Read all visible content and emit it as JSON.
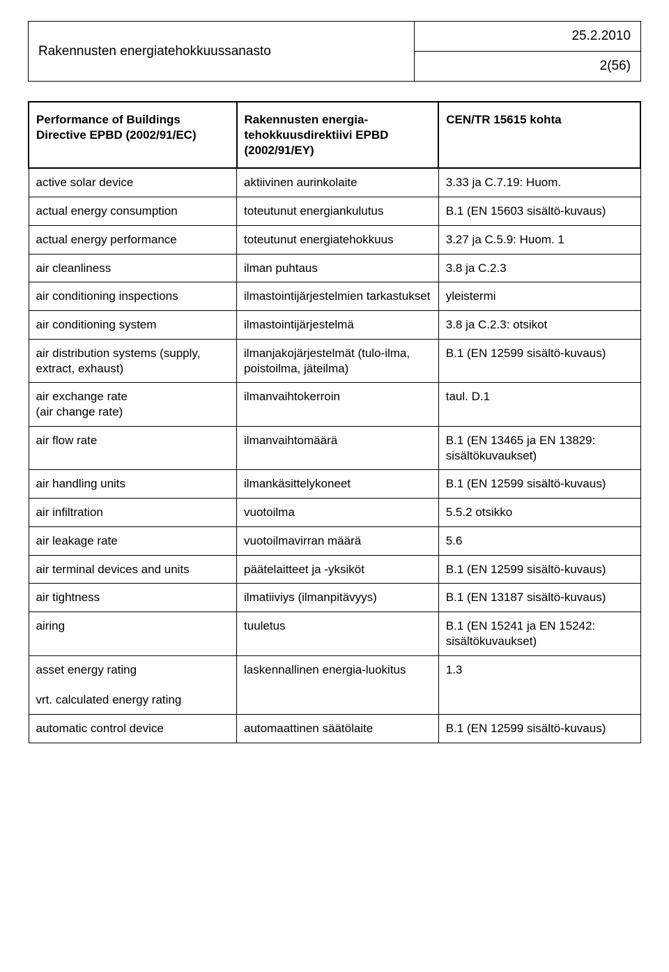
{
  "header": {
    "title": "Rakennusten energiatehokkuussanasto",
    "date": "25.2.2010",
    "page": "2(56)"
  },
  "columns": {
    "c1": "Performance of Buildings Directive EPBD (2002/91/EC)",
    "c2": "Rakennusten energia-tehokkuusdirektiivi EPBD (2002/91/EY)",
    "c3": "CEN/TR 15615 kohta"
  },
  "rows": [
    {
      "c1": "active solar device",
      "c2": "aktiivinen aurinkolaite",
      "c3": "3.33 ja C.7.19: Huom."
    },
    {
      "c1": "actual energy consumption",
      "c2": "toteutunut energiankulutus",
      "c3": "B.1 (EN 15603 sisältö-kuvaus)"
    },
    {
      "c1": "actual energy performance",
      "c2": "toteutunut energiatehokkuus",
      "c3": "3.27 ja C.5.9: Huom. 1"
    },
    {
      "c1": "air cleanliness",
      "c2": "ilman puhtaus",
      "c3": "3.8 ja C.2.3"
    },
    {
      "c1": "air conditioning inspections",
      "c2": "ilmastointijärjestelmien tarkastukset",
      "c3": "yleistermi"
    },
    {
      "c1": "air conditioning system",
      "c2": "ilmastointijärjestelmä",
      "c3": "3.8 ja C.2.3: otsikot"
    },
    {
      "c1": "air distribution systems (supply, extract, exhaust)",
      "c2": "ilmanjakojärjestelmät (tulo-ilma, poistoilma, jäteilma)",
      "c3": "B.1 (EN 12599 sisältö-kuvaus)"
    },
    {
      "c1": "air exchange rate\n(air change rate)",
      "c2": "ilmanvaihtokerroin",
      "c3": "taul. D.1"
    },
    {
      "c1": "air flow rate",
      "c2": "ilmanvaihtomäärä",
      "c3": "B.1 (EN 13465 ja EN 13829: sisältökuvaukset)"
    },
    {
      "c1": "air handling units",
      "c2": "ilmankäsittelykoneet",
      "c3": "B.1 (EN 12599 sisältö-kuvaus)"
    },
    {
      "c1": "air infiltration",
      "c2": "vuotoilma",
      "c3": "5.5.2 otsikko"
    },
    {
      "c1": "air leakage rate",
      "c2": "vuotoilmavirran määrä",
      "c3": "5.6"
    },
    {
      "c1": "air terminal devices and units",
      "c2": "päätelaitteet ja -yksiköt",
      "c3": "B.1 (EN 12599 sisältö-kuvaus)"
    },
    {
      "c1": "air tightness",
      "c2": "ilmatiiviys (ilmanpitävyys)",
      "c3": "B.1 (EN 13187 sisältö-kuvaus)"
    },
    {
      "c1": "airing",
      "c2": "tuuletus",
      "c3": "B.1 (EN 15241 ja EN 15242: sisältökuvaukset)"
    },
    {
      "c1": "asset energy rating\n\nvrt. calculated energy rating",
      "c2": "laskennallinen energia-luokitus",
      "c3": "1.3"
    },
    {
      "c1": "automatic control device",
      "c2": "automaattinen säätölaite",
      "c3": "B.1 (EN 12599 sisältö-kuvaus)"
    }
  ]
}
